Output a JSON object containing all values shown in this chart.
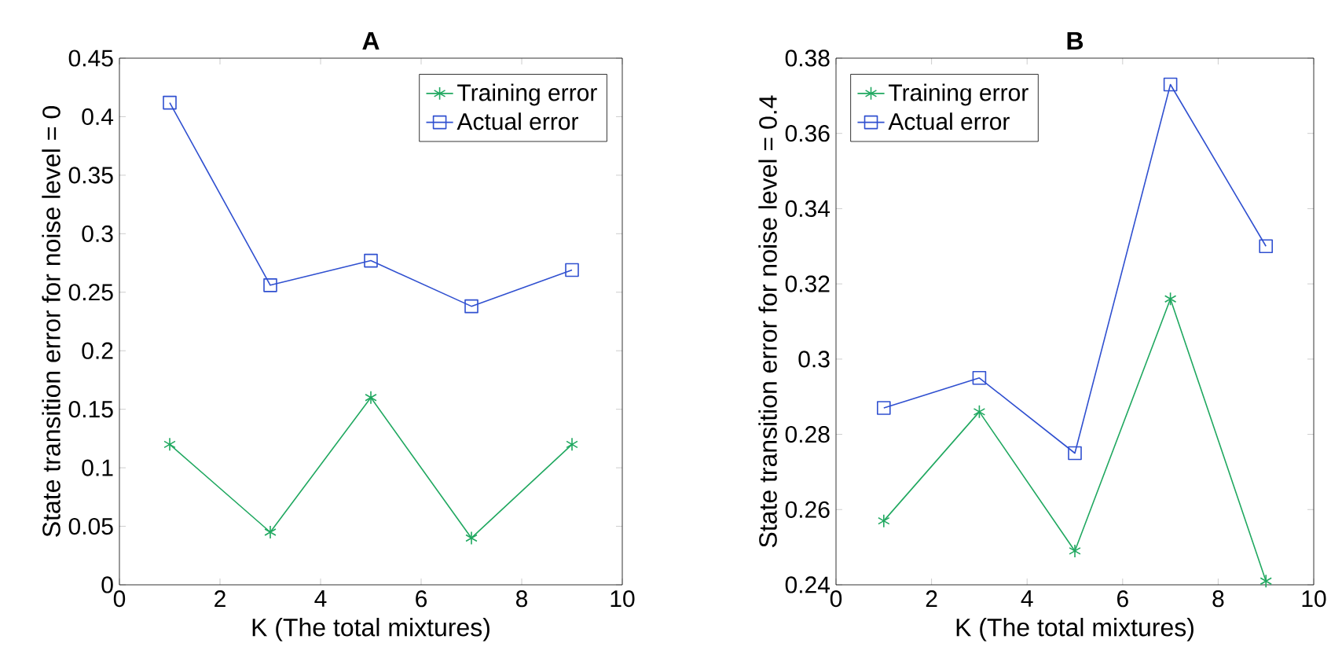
{
  "chart_data": [
    {
      "type": "line",
      "title": "A",
      "xlabel": "K (The total mixtures)",
      "ylabel": "State transition error for noise level = 0",
      "x": [
        1,
        3,
        5,
        7,
        9
      ],
      "series": [
        {
          "name": "Training error",
          "color": "#20a860",
          "marker": "cross",
          "values": [
            0.12,
            0.045,
            0.16,
            0.04,
            0.12
          ]
        },
        {
          "name": "Actual error",
          "color": "#3050d0",
          "marker": "square",
          "values": [
            0.412,
            0.256,
            0.277,
            0.238,
            0.269
          ]
        }
      ],
      "xlim": [
        0,
        10
      ],
      "xticks": [
        0,
        2,
        4,
        6,
        8,
        10
      ],
      "ylim": [
        0,
        0.45
      ],
      "yticks": [
        0,
        0.05,
        0.1,
        0.15,
        0.2,
        0.25,
        0.3,
        0.35,
        0.4,
        0.45
      ],
      "legend": "top right",
      "grid": false
    },
    {
      "type": "line",
      "title": "B",
      "xlabel": "K (The total mixtures)",
      "ylabel": "State transition error for noise level = 0.4",
      "x": [
        1,
        3,
        5,
        7,
        9
      ],
      "series": [
        {
          "name": "Training error",
          "color": "#20a860",
          "marker": "cross",
          "values": [
            0.257,
            0.286,
            0.249,
            0.316,
            0.241
          ]
        },
        {
          "name": "Actual error",
          "color": "#3050d0",
          "marker": "square",
          "values": [
            0.287,
            0.295,
            0.275,
            0.373,
            0.33
          ]
        }
      ],
      "xlim": [
        0,
        10
      ],
      "xticks": [
        0,
        2,
        4,
        6,
        8,
        10
      ],
      "ylim": [
        0.24,
        0.38
      ],
      "yticks": [
        0.24,
        0.26,
        0.28,
        0.3,
        0.32,
        0.34,
        0.36,
        0.38
      ],
      "legend": "top left",
      "grid": false
    }
  ]
}
